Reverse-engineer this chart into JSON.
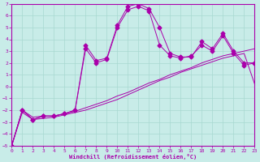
{
  "xlabel": "Windchill (Refroidissement éolien,°C)",
  "bg_color": "#c8ece8",
  "grid_color": "#a8d8d0",
  "line_color": "#aa00aa",
  "xlim": [
    0,
    23
  ],
  "ylim": [
    -5,
    7
  ],
  "xticks": [
    0,
    1,
    2,
    3,
    4,
    5,
    6,
    7,
    8,
    9,
    10,
    11,
    12,
    13,
    14,
    15,
    16,
    17,
    18,
    19,
    20,
    21,
    22,
    23
  ],
  "yticks": [
    -5,
    -4,
    -3,
    -2,
    -1,
    0,
    1,
    2,
    3,
    4,
    5,
    6,
    7
  ],
  "curve_straight1_x": [
    0,
    1,
    2,
    3,
    4,
    5,
    6,
    7,
    8,
    9,
    10,
    11,
    12,
    13,
    14,
    15,
    16,
    17,
    18,
    19,
    20,
    21,
    22,
    23
  ],
  "curve_straight1_y": [
    -5.0,
    -2.0,
    -2.6,
    -2.5,
    -2.5,
    -2.3,
    -2.1,
    -1.8,
    -1.5,
    -1.2,
    -0.8,
    -0.5,
    -0.1,
    0.3,
    0.6,
    1.0,
    1.3,
    1.6,
    2.0,
    2.3,
    2.6,
    2.8,
    3.0,
    3.2
  ],
  "curve_straight2_x": [
    0,
    1,
    2,
    3,
    4,
    5,
    6,
    7,
    8,
    9,
    10,
    11,
    12,
    13,
    14,
    15,
    16,
    17,
    18,
    19,
    20,
    21,
    22,
    23
  ],
  "curve_straight2_y": [
    -5.0,
    -2.2,
    -2.8,
    -2.7,
    -2.6,
    -2.4,
    -2.2,
    -2.0,
    -1.7,
    -1.4,
    -1.1,
    -0.7,
    -0.3,
    0.1,
    0.5,
    0.8,
    1.2,
    1.5,
    1.8,
    2.1,
    2.4,
    2.6,
    2.8,
    0.2
  ],
  "curve_wiggly1_x": [
    0,
    1,
    2,
    3,
    4,
    5,
    6,
    7,
    8,
    9,
    10,
    11,
    12,
    13,
    14,
    15,
    16,
    17,
    18,
    19,
    20,
    21,
    22,
    23
  ],
  "curve_wiggly1_y": [
    -5.0,
    -2.0,
    -2.8,
    -2.5,
    -2.5,
    -2.3,
    -2.0,
    3.5,
    2.2,
    2.4,
    5.2,
    6.8,
    7.0,
    6.6,
    5.0,
    2.8,
    2.5,
    2.5,
    3.8,
    3.2,
    4.5,
    3.0,
    2.0,
    2.0
  ],
  "curve_wiggly2_x": [
    0,
    1,
    2,
    3,
    4,
    5,
    6,
    7,
    8,
    9,
    10,
    11,
    12,
    13,
    14,
    15,
    16,
    17,
    18,
    19,
    20,
    21,
    22,
    23
  ],
  "curve_wiggly2_y": [
    -5.0,
    -2.0,
    -2.8,
    -2.5,
    -2.5,
    -2.3,
    -2.0,
    3.2,
    2.0,
    2.3,
    5.0,
    6.5,
    6.8,
    6.4,
    3.5,
    2.6,
    2.4,
    2.6,
    3.5,
    3.0,
    4.3,
    2.8,
    1.8,
    2.0
  ]
}
